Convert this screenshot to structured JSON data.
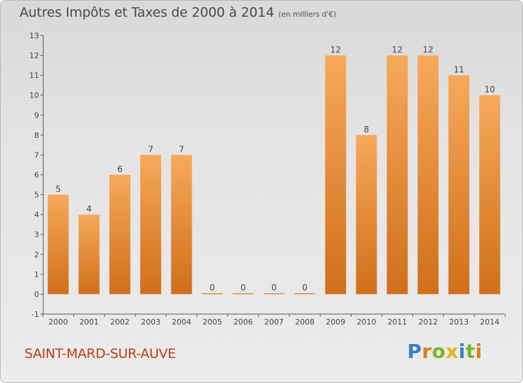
{
  "header": {
    "title": "Autres Impôts et Taxes de 2000 à 2014",
    "unit": "(en milliers d'€)"
  },
  "footer": {
    "commune": "SAINT-MARD-SUR-AUVE",
    "brand_letters": [
      {
        "char": "P",
        "color": "#3a7fc4"
      },
      {
        "char": "r",
        "color": "#e07b1a"
      },
      {
        "char": "o",
        "color": "#7ab52b"
      },
      {
        "char": "x",
        "color": "#e3b21a"
      },
      {
        "char": "i",
        "color": "#3a7fc4"
      },
      {
        "char": "t",
        "color": "#7ab52b"
      },
      {
        "char": "i",
        "color": "#e07b1a"
      }
    ]
  },
  "colors": {
    "bar_top": "#f7a95a",
    "bar_bottom": "#d06f1a",
    "axis": "#555555",
    "text": "#444444"
  },
  "chart_data": {
    "type": "bar",
    "categories": [
      "2000",
      "2001",
      "2002",
      "2003",
      "2004",
      "2005",
      "2006",
      "2007",
      "2008",
      "2009",
      "2010",
      "2011",
      "2012",
      "2013",
      "2014"
    ],
    "values": [
      5,
      4,
      6,
      7,
      7,
      0,
      0,
      0,
      0,
      12,
      8,
      12,
      12,
      11,
      10
    ],
    "data_labels": [
      "5",
      "4",
      "6",
      "7",
      "7",
      "0",
      "0",
      "0",
      "0",
      "12",
      "8",
      "12",
      "12",
      "11",
      "10"
    ],
    "ylim": [
      -1,
      13
    ],
    "yticks": [
      "-1",
      "0",
      "1",
      "2",
      "3",
      "4",
      "5",
      "6",
      "7",
      "8",
      "9",
      "10",
      "11",
      "12",
      "13"
    ],
    "grid": false
  }
}
